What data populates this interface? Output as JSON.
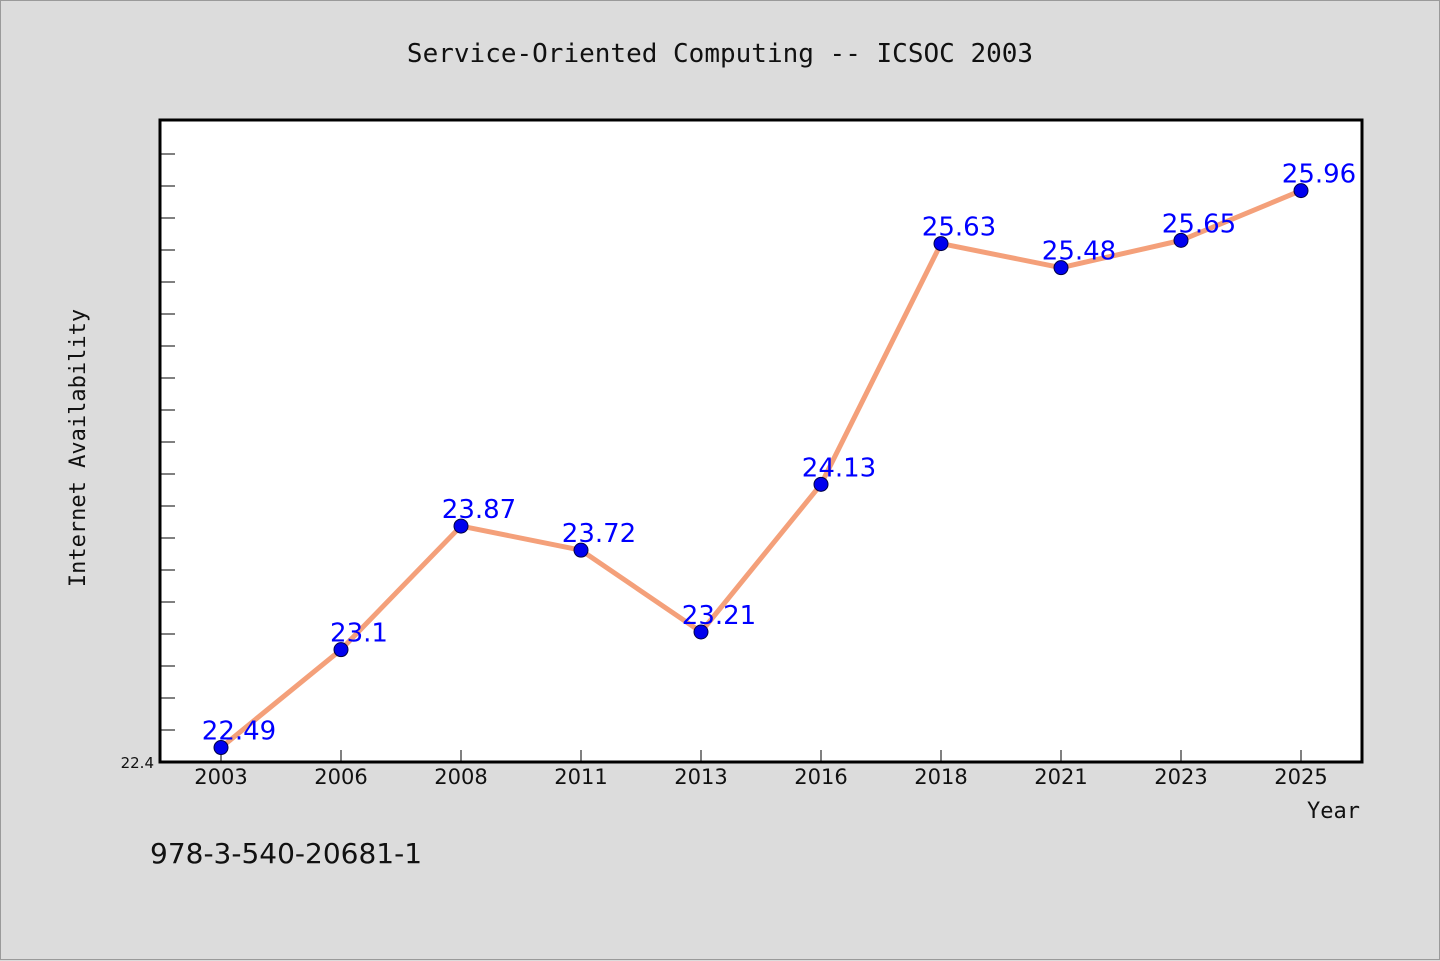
{
  "page": {
    "footer_text": "978-3-540-20681-1"
  },
  "chart_data": {
    "type": "line",
    "title": "Service-Oriented Computing -- ICSOC 2003",
    "xlabel": "Year",
    "ylabel": "Internet Availability",
    "categories": [
      "2003",
      "2006",
      "2008",
      "2011",
      "2013",
      "2016",
      "2018",
      "2021",
      "2023",
      "2025"
    ],
    "series": [
      {
        "values": [
          22.49,
          23.1,
          23.87,
          23.72,
          23.21,
          24.13,
          25.63,
          25.48,
          25.65,
          25.96
        ],
        "labels": [
          "22.49",
          "23.1",
          "23.87",
          "23.72",
          "23.21",
          "24.13",
          "25.63",
          "25.48",
          "25.65",
          "25.96"
        ]
      }
    ],
    "ylim": [
      22.4,
      26.4
    ],
    "yticks_labeled": [
      "22.4"
    ],
    "grid": false,
    "legend": "none",
    "colors": {
      "line": "#f4a07a",
      "marker": "#0000ee",
      "marker_edge": "#000044",
      "label": "#0000ff",
      "plot_bg": "#ffffff",
      "frame": "#000000"
    }
  }
}
